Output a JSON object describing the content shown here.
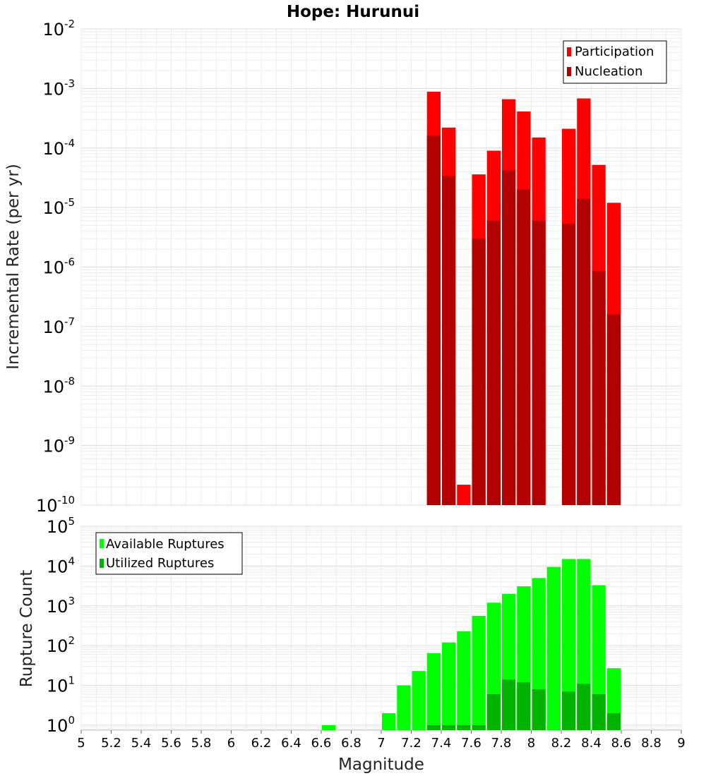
{
  "chart_data": [
    {
      "type": "bar",
      "title": "Hope: Hurunui",
      "ylabel": "Incremental Rate (per yr)",
      "xlabel": "",
      "xlim": [
        5,
        9
      ],
      "ylim": [
        1e-10,
        0.01
      ],
      "yscale": "log",
      "grid": true,
      "legend_position": "top-right",
      "bin_width": 0.1,
      "series": [
        {
          "name": "Participation",
          "color": "#ff0000",
          "x": [
            7.35,
            7.45,
            7.55,
            7.65,
            7.75,
            7.85,
            7.95,
            8.05,
            8.25,
            8.35,
            8.45,
            8.55
          ],
          "values": [
            0.00088,
            0.00022,
            2.2e-10,
            3.6e-05,
            9e-05,
            0.00066,
            0.00041,
            0.00015,
            0.00021,
            0.00068,
            5.2e-05,
            1.2e-05
          ]
        },
        {
          "name": "Nucleation",
          "color": "#b30000",
          "x": [
            7.35,
            7.45,
            7.65,
            7.75,
            7.85,
            7.95,
            8.05,
            8.25,
            8.35,
            8.45,
            8.55
          ],
          "values": [
            0.00016,
            3.4e-05,
            3e-06,
            6e-06,
            4.2e-05,
            2e-05,
            6e-06,
            5.3e-06,
            1.4e-05,
            8.5e-07,
            1.6e-07
          ]
        }
      ]
    },
    {
      "type": "bar",
      "title": "",
      "ylabel": "Rupture Count",
      "xlabel": "Magnitude",
      "xlim": [
        5,
        9
      ],
      "ylim": [
        0.75,
        100000
      ],
      "yscale": "log",
      "grid": true,
      "legend_position": "top-left",
      "bin_width": 0.1,
      "x_ticks": [
        "5",
        "5.2",
        "5.4",
        "5.6",
        "5.8",
        "6",
        "6.2",
        "6.4",
        "6.6",
        "6.8",
        "7",
        "7.2",
        "7.4",
        "7.6",
        "7.8",
        "8",
        "8.2",
        "8.4",
        "8.6",
        "8.8",
        "9"
      ],
      "series": [
        {
          "name": "Available Ruptures",
          "color": "#00ff00",
          "x": [
            6.65,
            7.05,
            7.15,
            7.25,
            7.35,
            7.45,
            7.55,
            7.65,
            7.75,
            7.85,
            7.95,
            8.05,
            8.15,
            8.25,
            8.35,
            8.45,
            8.55
          ],
          "values": [
            1,
            2,
            10,
            23,
            65,
            120,
            230,
            560,
            1200,
            2000,
            3100,
            5000,
            9500,
            15000,
            15000,
            3300,
            27
          ]
        },
        {
          "name": "Utilized Ruptures",
          "color": "#00b300",
          "x": [
            7.35,
            7.45,
            7.55,
            7.65,
            7.75,
            7.85,
            7.95,
            8.05,
            8.25,
            8.35,
            8.45,
            8.55
          ],
          "values": [
            1,
            1,
            1,
            1,
            6,
            14,
            12,
            8,
            7,
            11,
            6,
            2
          ]
        }
      ]
    }
  ]
}
